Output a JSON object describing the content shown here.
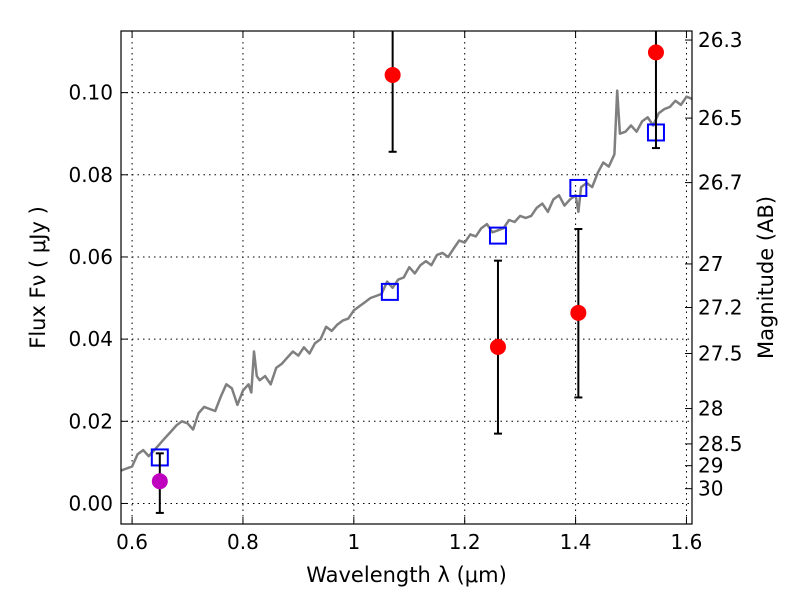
{
  "chart_data": {
    "type": "scatter",
    "xlabel": "Wavelength  λ (μm)",
    "ylabel": "Flux  Fν  ( μJy )",
    "ylabel_right": "Magnitude (AB)",
    "xlim": [
      0.58,
      1.61
    ],
    "ylim": [
      -0.005,
      0.115
    ],
    "grid": true,
    "x_ticks": [
      0.6,
      0.8,
      1.0,
      1.2,
      1.4,
      1.6
    ],
    "x_tick_labels": [
      "0.6",
      "0.8",
      "1",
      "1.2",
      "1.4",
      "1.6"
    ],
    "y_ticks": [
      0.0,
      0.02,
      0.04,
      0.06,
      0.08,
      0.1
    ],
    "y_tick_labels": [
      "0.00",
      "0.02",
      "0.04",
      "0.06",
      "0.08",
      "0.10"
    ],
    "right_ticks": [
      {
        "flux": 0.1128,
        "label": "26.3"
      },
      {
        "flux": 0.0938,
        "label": "26.5"
      },
      {
        "flux": 0.0781,
        "label": "26.7"
      },
      {
        "flux": 0.0583,
        "label": "27"
      },
      {
        "flux": 0.0477,
        "label": "27.2"
      },
      {
        "flux": 0.0365,
        "label": "27.5"
      },
      {
        "flux": 0.0231,
        "label": "28"
      },
      {
        "flux": 0.0145,
        "label": "28.5"
      },
      {
        "flux": 0.0092,
        "label": "29"
      },
      {
        "flux": 0.0036,
        "label": "30"
      }
    ],
    "series": [
      {
        "kind": "line",
        "color": "#7f7f7f",
        "x": [
          0.58,
          0.59,
          0.6,
          0.61,
          0.62,
          0.63,
          0.64,
          0.65,
          0.66,
          0.67,
          0.68,
          0.69,
          0.7,
          0.71,
          0.72,
          0.73,
          0.74,
          0.75,
          0.76,
          0.77,
          0.78,
          0.79,
          0.8,
          0.81,
          0.815,
          0.82,
          0.825,
          0.83,
          0.84,
          0.85,
          0.86,
          0.87,
          0.88,
          0.89,
          0.9,
          0.91,
          0.92,
          0.93,
          0.94,
          0.95,
          0.96,
          0.97,
          0.98,
          0.99,
          1.0,
          1.01,
          1.02,
          1.03,
          1.04,
          1.05,
          1.06,
          1.07,
          1.08,
          1.09,
          1.1,
          1.11,
          1.12,
          1.13,
          1.14,
          1.15,
          1.16,
          1.17,
          1.18,
          1.19,
          1.2,
          1.21,
          1.22,
          1.23,
          1.24,
          1.25,
          1.26,
          1.27,
          1.28,
          1.29,
          1.3,
          1.31,
          1.32,
          1.33,
          1.34,
          1.35,
          1.36,
          1.37,
          1.38,
          1.39,
          1.4,
          1.405,
          1.41,
          1.42,
          1.43,
          1.44,
          1.45,
          1.46,
          1.47,
          1.475,
          1.48,
          1.49,
          1.5,
          1.51,
          1.52,
          1.53,
          1.54,
          1.55,
          1.56,
          1.57,
          1.58,
          1.59,
          1.6,
          1.61
        ],
        "y": [
          0.008,
          0.0085,
          0.009,
          0.012,
          0.013,
          0.0115,
          0.013,
          0.0145,
          0.016,
          0.0175,
          0.019,
          0.02,
          0.0195,
          0.018,
          0.022,
          0.0235,
          0.023,
          0.0225,
          0.026,
          0.029,
          0.028,
          0.024,
          0.0275,
          0.029,
          0.027,
          0.037,
          0.031,
          0.03,
          0.031,
          0.029,
          0.033,
          0.034,
          0.0355,
          0.037,
          0.036,
          0.038,
          0.0365,
          0.039,
          0.04,
          0.043,
          0.042,
          0.0435,
          0.0445,
          0.045,
          0.047,
          0.048,
          0.049,
          0.05,
          0.0505,
          0.051,
          0.054,
          0.0525,
          0.0545,
          0.055,
          0.0575,
          0.056,
          0.058,
          0.059,
          0.058,
          0.0605,
          0.061,
          0.06,
          0.062,
          0.064,
          0.0635,
          0.0655,
          0.065,
          0.067,
          0.068,
          0.066,
          0.0665,
          0.067,
          0.069,
          0.0685,
          0.07,
          0.0695,
          0.07,
          0.072,
          0.073,
          0.071,
          0.074,
          0.075,
          0.0725,
          0.074,
          0.075,
          0.071,
          0.077,
          0.078,
          0.077,
          0.0805,
          0.083,
          0.082,
          0.085,
          0.1005,
          0.09,
          0.0905,
          0.092,
          0.0905,
          0.093,
          0.094,
          0.092,
          0.095,
          0.096,
          0.0965,
          0.098,
          0.097,
          0.099,
          0.0985
        ]
      },
      {
        "kind": "open_square",
        "color": "#0000ff",
        "x": [
          0.65,
          1.065,
          1.26,
          1.405,
          1.545
        ],
        "y": [
          0.0112,
          0.0515,
          0.0652,
          0.0768,
          0.0903
        ]
      },
      {
        "kind": "point_errorbar",
        "color": "#ff0000",
        "x": [
          1.07,
          1.26,
          1.405,
          1.545
        ],
        "y": [
          0.1043,
          0.0381,
          0.0464,
          0.1098
        ],
        "yerr_low": [
          0.0187,
          0.0211,
          0.0206,
          0.0233
        ],
        "yerr_high": [
          0.0117,
          0.021,
          0.0204,
          0.0058
        ]
      },
      {
        "kind": "point_errorbar",
        "color": "#bf00bf",
        "x": [
          0.65
        ],
        "y": [
          0.0054
        ],
        "yerr_low": [
          0.0077
        ],
        "yerr_high": [
          0.0068
        ]
      }
    ]
  }
}
